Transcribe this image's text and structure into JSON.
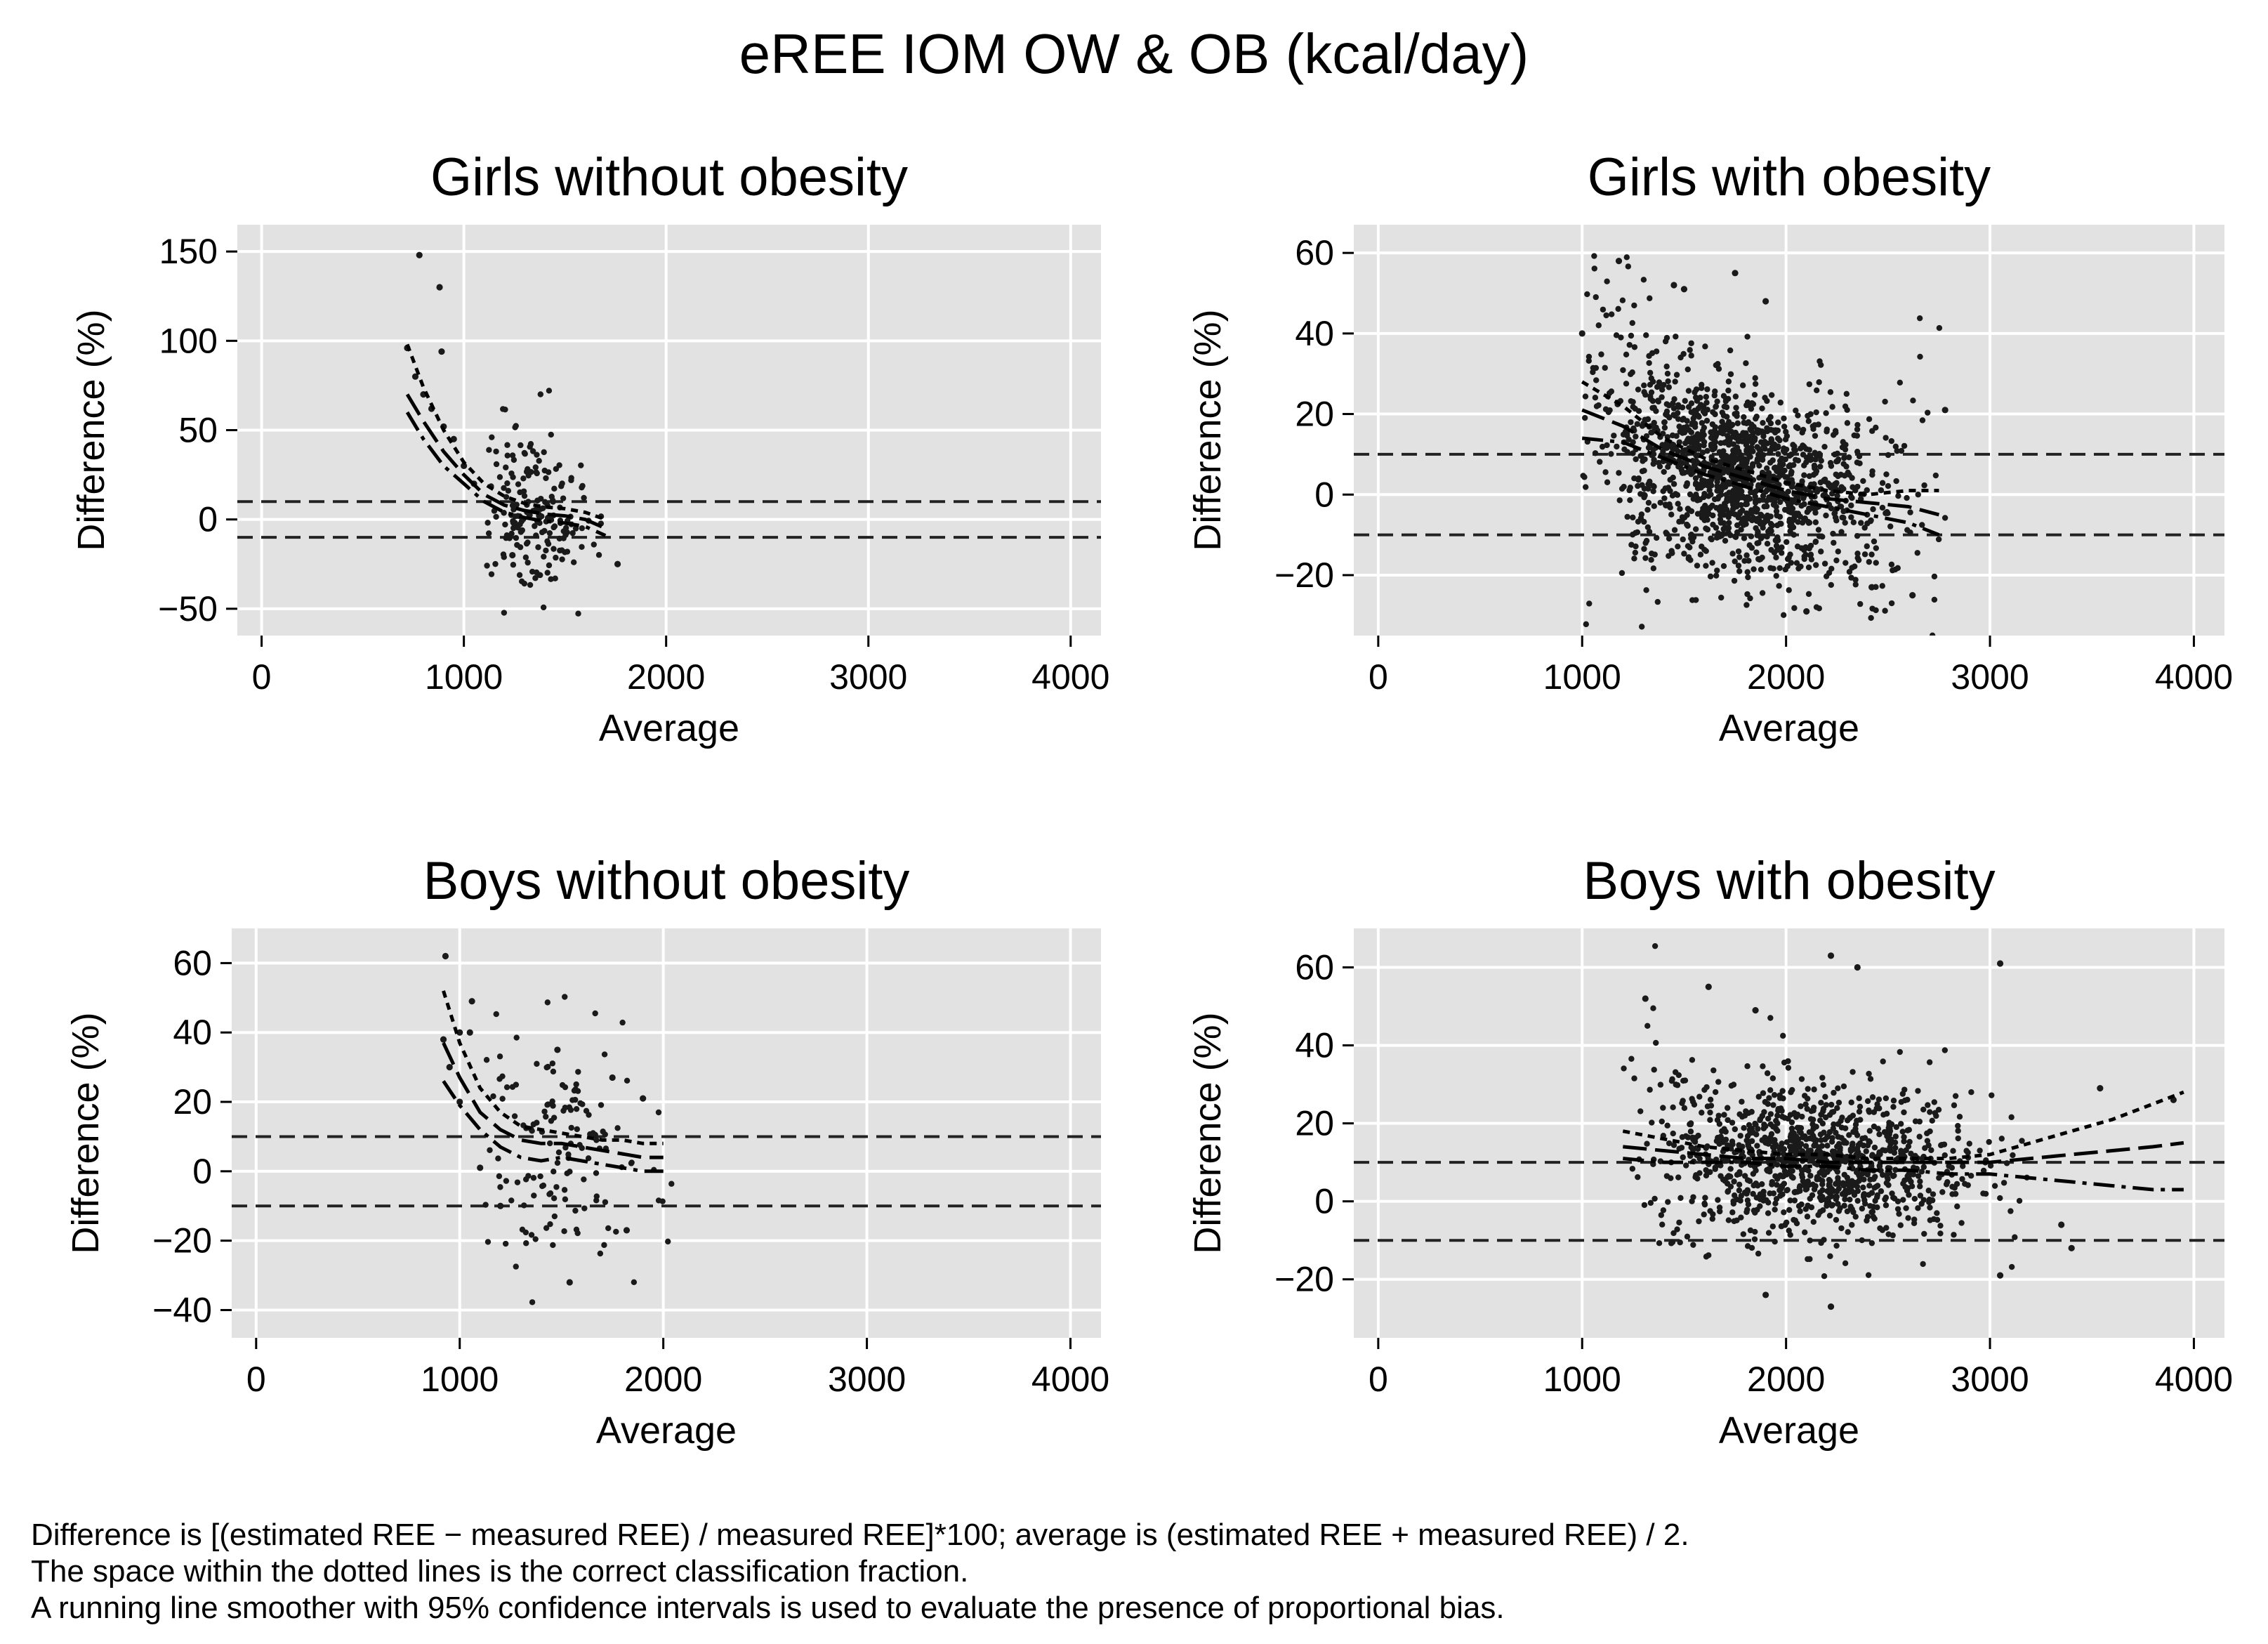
{
  "figure": {
    "title": "eREE IOM OW & OB (kcal/day)",
    "plot_background": "#e2e2e2",
    "gridline_color": "#ffffff",
    "point_color": "#1a1a1a",
    "line_color": "#000000"
  },
  "footnotes": [
    "Difference is [(estimated REE − measured REE) / measured REE]*100; average is (estimated REE + measured REE) / 2.",
    "The space within the dotted lines is the correct classification fraction.",
    "A running line smoother with 95% confidence intervals is used to evaluate the presence of proportional bias."
  ],
  "chart_data": [
    {
      "type": "scatter",
      "title": "Girls without obesity",
      "xlabel": "Average",
      "ylabel": "Difference (%)",
      "xlim": [
        -120,
        4150
      ],
      "ylim": [
        -65,
        165
      ],
      "xticks": [
        0,
        1000,
        2000,
        3000,
        4000
      ],
      "yticks": [
        -50,
        0,
        50,
        100,
        150
      ],
      "ytick_labels": [
        "−50",
        "0",
        "50",
        "100",
        "150"
      ],
      "reference_lines": [
        10,
        -10
      ],
      "cloud": {
        "n": 190,
        "x_range": [
          1100,
          1720
        ],
        "center": 1350
      },
      "extra_points": [
        [
          780,
          148
        ],
        [
          880,
          130
        ],
        [
          890,
          94
        ],
        [
          720,
          96
        ],
        [
          760,
          80
        ],
        [
          800,
          70
        ],
        [
          840,
          62
        ],
        [
          900,
          52
        ],
        [
          950,
          45
        ],
        [
          1000,
          30
        ],
        [
          1760,
          -25
        ],
        [
          1240,
          -20
        ],
        [
          1050,
          20
        ]
      ],
      "smoother": {
        "x": [
          720,
          800,
          900,
          1000,
          1100,
          1200,
          1300,
          1400,
          1500,
          1600,
          1700
        ],
        "y": [
          70,
          55,
          38,
          25,
          14,
          8,
          5,
          3,
          2,
          0,
          -5
        ],
        "upper": [
          98,
          74,
          50,
          32,
          20,
          13,
          9,
          7,
          6,
          4,
          0
        ],
        "lower": [
          60,
          45,
          30,
          20,
          10,
          4,
          1,
          -1,
          -2,
          -4,
          -9
        ]
      }
    },
    {
      "type": "scatter",
      "title": "Girls with obesity",
      "xlabel": "Average",
      "ylabel": "Difference (%)",
      "xlim": [
        -120,
        4150
      ],
      "ylim": [
        -35,
        67
      ],
      "xticks": [
        0,
        1000,
        2000,
        3000,
        4000
      ],
      "yticks": [
        -20,
        0,
        20,
        40,
        60
      ],
      "ytick_labels": [
        "−20",
        "0",
        "20",
        "40",
        "60"
      ],
      "reference_lines": [
        10,
        -10
      ],
      "cloud": {
        "n": 1500,
        "x_range": [
          1000,
          2800
        ],
        "center": 1750
      },
      "extra_points": [
        [
          1180,
          58
        ],
        [
          1450,
          52
        ],
        [
          1500,
          51
        ],
        [
          1750,
          55
        ],
        [
          1000,
          40
        ],
        [
          2100,
          -29
        ],
        [
          2620,
          -25
        ],
        [
          2780,
          21
        ],
        [
          2420,
          -23
        ],
        [
          1900,
          48
        ]
      ],
      "smoother": {
        "x": [
          1000,
          1200,
          1400,
          1600,
          1800,
          2000,
          2200,
          2400,
          2600,
          2750
        ],
        "y": [
          21,
          17,
          11,
          7,
          4,
          1,
          -1,
          -2,
          -3,
          -5
        ],
        "upper": [
          28,
          22,
          14,
          9,
          6,
          3,
          1,
          0,
          1,
          1
        ],
        "lower": [
          14,
          13,
          9,
          5,
          2,
          -1,
          -3,
          -5,
          -7,
          -10
        ]
      }
    },
    {
      "type": "scatter",
      "title": "Boys without obesity",
      "xlabel": "Average",
      "ylabel": "Difference (%)",
      "xlim": [
        -120,
        4150
      ],
      "ylim": [
        -48,
        70
      ],
      "xticks": [
        0,
        1000,
        2000,
        3000,
        4000
      ],
      "yticks": [
        -40,
        -20,
        0,
        20,
        40,
        60
      ],
      "ytick_labels": [
        "−40",
        "−20",
        "0",
        "20",
        "40",
        "60"
      ],
      "reference_lines": [
        10,
        -10
      ],
      "cloud": {
        "n": 140,
        "x_range": [
          1100,
          2050
        ],
        "center": 1500
      },
      "extra_points": [
        [
          930,
          62
        ],
        [
          1060,
          49
        ],
        [
          1000,
          40
        ],
        [
          1050,
          40
        ],
        [
          920,
          38
        ],
        [
          950,
          30
        ],
        [
          1000,
          20
        ],
        [
          1540,
          -32
        ],
        [
          1820,
          -17
        ],
        [
          1480,
          35
        ],
        [
          1750,
          27
        ],
        [
          1900,
          21
        ],
        [
          1100,
          1
        ],
        [
          1200,
          -10
        ]
      ],
      "smoother": {
        "x": [
          920,
          1000,
          1100,
          1200,
          1300,
          1400,
          1500,
          1600,
          1700,
          1800,
          1900,
          2000
        ],
        "y": [
          37,
          27,
          17,
          12,
          9,
          8,
          8,
          7,
          6,
          5,
          4,
          4
        ],
        "upper": [
          52,
          37,
          24,
          17,
          13,
          12,
          11,
          10,
          9,
          9,
          8,
          8
        ],
        "lower": [
          26,
          19,
          12,
          7,
          4,
          3,
          4,
          3,
          2,
          1,
          0,
          0
        ]
      }
    },
    {
      "type": "scatter",
      "title": "Boys with obesity",
      "xlabel": "Average",
      "ylabel": "Difference (%)",
      "xlim": [
        -120,
        4150
      ],
      "ylim": [
        -35,
        70
      ],
      "xticks": [
        0,
        1000,
        2000,
        3000,
        4000
      ],
      "yticks": [
        -20,
        0,
        20,
        40,
        60
      ],
      "ytick_labels": [
        "−20",
        "0",
        "20",
        "40",
        "60"
      ],
      "reference_lines": [
        10,
        -10
      ],
      "cloud": {
        "n": 1100,
        "x_range": [
          1200,
          3200
        ],
        "center": 2150
      },
      "extra_points": [
        [
          2220,
          63
        ],
        [
          2350,
          60
        ],
        [
          3050,
          61
        ],
        [
          1310,
          52
        ],
        [
          1620,
          55
        ],
        [
          1850,
          49
        ],
        [
          3540,
          29
        ],
        [
          3900,
          26
        ],
        [
          1900,
          -24
        ],
        [
          2220,
          -27
        ],
        [
          3050,
          -19
        ],
        [
          3400,
          -12
        ],
        [
          3350,
          -6
        ]
      ],
      "smoother": {
        "x": [
          1200,
          1400,
          1600,
          1800,
          2000,
          2200,
          2400,
          2600,
          2800,
          3000,
          3200,
          3400,
          3600,
          3800,
          3950
        ],
        "y": [
          14,
          13,
          12,
          11,
          11,
          10,
          10,
          10,
          10,
          10,
          11,
          12,
          13,
          14,
          15
        ],
        "upper": [
          18,
          16,
          14,
          13,
          12,
          12,
          11,
          11,
          11,
          12,
          15,
          18,
          21,
          25,
          28
        ],
        "lower": [
          11,
          10,
          10,
          10,
          9,
          9,
          8,
          8,
          7,
          7,
          6,
          5,
          4,
          3,
          3
        ]
      }
    }
  ]
}
